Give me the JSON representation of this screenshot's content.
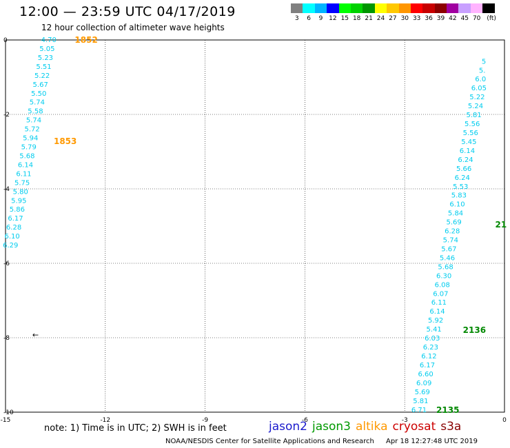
{
  "header": {
    "title": "12:00 — 23:59 UTC 04/17/2019",
    "subtitle": "12 hour collection of altimeter wave heights"
  },
  "legend": {
    "colors": [
      "#808080",
      "#00ffff",
      "#00b4ff",
      "#0000ff",
      "#00ff00",
      "#00d200",
      "#009600",
      "#ffff00",
      "#ffc800",
      "#ff9600",
      "#ff0000",
      "#c80000",
      "#8c0000",
      "#a000a0",
      "#c8a0ff",
      "#ffb4ff",
      "#000000"
    ],
    "labels": [
      "3",
      "6",
      "9",
      "12",
      "15",
      "18",
      "21",
      "24",
      "27",
      "30",
      "33",
      "36",
      "39",
      "42",
      "45",
      "70",
      "(ft)"
    ]
  },
  "axes": {
    "x_ticks": [
      "-15",
      "-12",
      "-9",
      "-6",
      "-3",
      "0"
    ],
    "y_ticks": [
      "0",
      "-2",
      "-4",
      "-6",
      "-8",
      "-10"
    ],
    "xlim": [
      -15,
      0
    ],
    "ylim": [
      -10,
      0
    ]
  },
  "tracks": [
    {
      "satellite": "altika",
      "color": "#ff9900",
      "text_color": "#00ccee",
      "time_labels": [
        {
          "text": "1852",
          "lon": -12.92,
          "lat": 0.0
        },
        {
          "text": "1853",
          "lon": -13.55,
          "lat": -2.72
        }
      ],
      "points": [
        {
          "lon": -13.7,
          "lat": 0.0,
          "v": "4.70"
        },
        {
          "lon": -13.75,
          "lat": -0.24,
          "v": "5.05"
        },
        {
          "lon": -13.8,
          "lat": -0.48,
          "v": "5.23"
        },
        {
          "lon": -13.85,
          "lat": -0.72,
          "v": "5.51"
        },
        {
          "lon": -13.9,
          "lat": -0.96,
          "v": "5.22"
        },
        {
          "lon": -13.95,
          "lat": -1.2,
          "v": "5.67"
        },
        {
          "lon": -14.0,
          "lat": -1.44,
          "v": "5.50"
        },
        {
          "lon": -14.05,
          "lat": -1.68,
          "v": "5.74"
        },
        {
          "lon": -14.1,
          "lat": -1.92,
          "v": "5.58"
        },
        {
          "lon": -14.15,
          "lat": -2.16,
          "v": "5.74"
        },
        {
          "lon": -14.2,
          "lat": -2.4,
          "v": "5.72"
        },
        {
          "lon": -14.25,
          "lat": -2.64,
          "v": "5.94"
        },
        {
          "lon": -14.3,
          "lat": -2.88,
          "v": "5.79"
        },
        {
          "lon": -14.35,
          "lat": -3.12,
          "v": "5.68"
        },
        {
          "lon": -14.4,
          "lat": -3.36,
          "v": "6.14"
        },
        {
          "lon": -14.45,
          "lat": -3.6,
          "v": "6.11"
        },
        {
          "lon": -14.5,
          "lat": -3.84,
          "v": "5.75"
        },
        {
          "lon": -14.55,
          "lat": -4.08,
          "v": "5.80"
        },
        {
          "lon": -14.6,
          "lat": -4.32,
          "v": "5.95"
        },
        {
          "lon": -14.65,
          "lat": -4.56,
          "v": "5.86"
        },
        {
          "lon": -14.7,
          "lat": -4.8,
          "v": "6.17"
        },
        {
          "lon": -14.75,
          "lat": -5.04,
          "v": "6.28"
        },
        {
          "lon": -14.8,
          "lat": -5.28,
          "v": "6.10"
        },
        {
          "lon": -14.85,
          "lat": -5.52,
          "v": "6.29"
        }
      ]
    },
    {
      "satellite": "jason3",
      "color": "#008800",
      "text_color": "#00ccee",
      "time_labels": [
        {
          "text": "2136",
          "lon": -1.25,
          "lat": -7.8
        },
        {
          "text": "2135",
          "lon": -2.05,
          "lat": -9.94
        },
        {
          "text": "21",
          "lon": -0.28,
          "lat": -4.96
        }
      ],
      "points": [
        {
          "lon": -2.57,
          "lat": -9.94,
          "v": "6.71"
        },
        {
          "lon": -2.52,
          "lat": -9.7,
          "v": "5.81"
        },
        {
          "lon": -2.47,
          "lat": -9.46,
          "v": "5.69"
        },
        {
          "lon": -2.42,
          "lat": -9.22,
          "v": "6.09"
        },
        {
          "lon": -2.37,
          "lat": -8.98,
          "v": "6.60"
        },
        {
          "lon": -2.32,
          "lat": -8.74,
          "v": "6.17"
        },
        {
          "lon": -2.27,
          "lat": -8.5,
          "v": "6.12"
        },
        {
          "lon": -2.22,
          "lat": -8.26,
          "v": "6.23"
        },
        {
          "lon": -2.17,
          "lat": -8.02,
          "v": "6.03"
        },
        {
          "lon": -2.12,
          "lat": -7.78,
          "v": "5.41"
        },
        {
          "lon": -2.07,
          "lat": -7.54,
          "v": "5.92"
        },
        {
          "lon": -2.02,
          "lat": -7.3,
          "v": "6.14"
        },
        {
          "lon": -1.97,
          "lat": -7.06,
          "v": "6.11"
        },
        {
          "lon": -1.92,
          "lat": -6.82,
          "v": "6.07"
        },
        {
          "lon": -1.87,
          "lat": -6.58,
          "v": "6.08"
        },
        {
          "lon": -1.82,
          "lat": -6.34,
          "v": "6.30"
        },
        {
          "lon": -1.77,
          "lat": -6.1,
          "v": "5.68"
        },
        {
          "lon": -1.72,
          "lat": -5.86,
          "v": "5.46"
        },
        {
          "lon": -1.67,
          "lat": -5.62,
          "v": "5.67"
        },
        {
          "lon": -1.62,
          "lat": -5.38,
          "v": "5.74"
        },
        {
          "lon": -1.57,
          "lat": -5.14,
          "v": "6.28"
        },
        {
          "lon": -1.52,
          "lat": -4.9,
          "v": "5.69"
        },
        {
          "lon": -1.47,
          "lat": -4.66,
          "v": "5.84"
        },
        {
          "lon": -1.42,
          "lat": -4.42,
          "v": "6.10"
        },
        {
          "lon": -1.37,
          "lat": -4.18,
          "v": "5.83"
        },
        {
          "lon": -1.32,
          "lat": -3.94,
          "v": "5.53"
        },
        {
          "lon": -1.27,
          "lat": -3.7,
          "v": "6.24"
        },
        {
          "lon": -1.22,
          "lat": -3.46,
          "v": "5.66"
        },
        {
          "lon": -1.17,
          "lat": -3.22,
          "v": "6.24"
        },
        {
          "lon": -1.12,
          "lat": -2.98,
          "v": "6.14"
        },
        {
          "lon": -1.07,
          "lat": -2.74,
          "v": "5.45"
        },
        {
          "lon": -1.02,
          "lat": -2.5,
          "v": "5.56"
        },
        {
          "lon": -0.97,
          "lat": -2.26,
          "v": "5.56"
        },
        {
          "lon": -0.92,
          "lat": -2.02,
          "v": "5.81"
        },
        {
          "lon": -0.87,
          "lat": -1.78,
          "v": "5.24"
        },
        {
          "lon": -0.82,
          "lat": -1.54,
          "v": "5.22"
        },
        {
          "lon": -0.77,
          "lat": -1.3,
          "v": "6.05"
        },
        {
          "lon": -0.72,
          "lat": -1.06,
          "v": "6.0"
        },
        {
          "lon": -0.67,
          "lat": -0.82,
          "v": "5."
        },
        {
          "lon": -0.62,
          "lat": -0.58,
          "v": "5"
        }
      ]
    }
  ],
  "arrows": [
    {
      "lon": -14.1,
      "lat": -7.92,
      "glyph": "←"
    }
  ],
  "footer": {
    "note": "note: 1) Time is in UTC; 2) SWH is in feet",
    "satellites": [
      {
        "name": "jason2",
        "color": "#1a1acc"
      },
      {
        "name": "jason3",
        "color": "#009900"
      },
      {
        "name": "altika",
        "color": "#ff9900"
      },
      {
        "name": "cryosat",
        "color": "#cc0000"
      },
      {
        "name": "s3a",
        "color": "#880000"
      }
    ],
    "credit": "NOAA/NESDIS Center for Satellite Applications and Research",
    "timestamp": "Apr 18 12:27:48 UTC 2019"
  }
}
